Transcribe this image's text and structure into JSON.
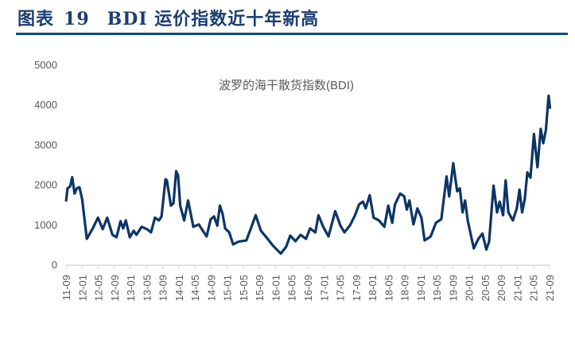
{
  "header": {
    "prefix": "图表",
    "number": "19",
    "text": "BDI 运价指数近十年新高"
  },
  "colors": {
    "line": "#0c3566",
    "title": "#1d3e73",
    "rule": "#0e4a8a",
    "axis": "#d9d9d9",
    "text": "#595959"
  },
  "chart_data": {
    "type": "line",
    "title": "波罗的海干散货指数(BDI)",
    "xlabel": "",
    "ylabel": "",
    "ylim": [
      0,
      5000
    ],
    "yticks": [
      "0",
      "1000",
      "2000",
      "3000",
      "4000",
      "5000"
    ],
    "xticks": [
      "11-09",
      "12-01",
      "12-05",
      "12-09",
      "13-01",
      "13-05",
      "13-09",
      "14-01",
      "14-05",
      "14-09",
      "15-01",
      "15-05",
      "15-09",
      "16-01",
      "16-05",
      "16-09",
      "17-01",
      "17-05",
      "17-09",
      "18-01",
      "18-05",
      "18-09",
      "19-01",
      "19-05",
      "19-09",
      "20-01",
      "20-05",
      "20-09",
      "21-01",
      "21-05",
      "21-09"
    ],
    "xlim": [
      "2011-09-01",
      "2021-09-01"
    ],
    "grid": false,
    "legend": "none",
    "series": [
      {
        "points": [
          [
            "2011-09-02",
            1600
          ],
          [
            "2011-09-12",
            1900
          ],
          [
            "2011-10-02",
            1950
          ],
          [
            "2011-10-17",
            2180
          ],
          [
            "2011-11-05",
            1770
          ],
          [
            "2011-11-21",
            1900
          ],
          [
            "2011-12-11",
            1930
          ],
          [
            "2012-01-01",
            1630
          ],
          [
            "2012-02-06",
            640
          ],
          [
            "2012-03-20",
            900
          ],
          [
            "2012-04-29",
            1170
          ],
          [
            "2012-06-04",
            880
          ],
          [
            "2012-07-08",
            1170
          ],
          [
            "2012-08-17",
            740
          ],
          [
            "2012-09-17",
            680
          ],
          [
            "2012-10-17",
            1080
          ],
          [
            "2012-11-06",
            900
          ],
          [
            "2012-11-26",
            1100
          ],
          [
            "2012-12-26",
            680
          ],
          [
            "2013-01-25",
            840
          ],
          [
            "2013-02-15",
            740
          ],
          [
            "2013-03-24",
            940
          ],
          [
            "2013-05-04",
            880
          ],
          [
            "2013-06-04",
            800
          ],
          [
            "2013-07-03",
            1170
          ],
          [
            "2013-08-03",
            1100
          ],
          [
            "2013-08-22",
            1200
          ],
          [
            "2013-09-22",
            2130
          ],
          [
            "2013-10-02",
            2100
          ],
          [
            "2013-11-02",
            1470
          ],
          [
            "2013-11-21",
            1530
          ],
          [
            "2013-12-11",
            2330
          ],
          [
            "2013-12-25",
            2230
          ],
          [
            "2014-01-11",
            1470
          ],
          [
            "2014-02-11",
            1100
          ],
          [
            "2014-03-10",
            1600
          ],
          [
            "2014-04-19",
            940
          ],
          [
            "2014-05-29",
            1000
          ],
          [
            "2014-07-08",
            800
          ],
          [
            "2014-07-28",
            700
          ],
          [
            "2014-08-28",
            1130
          ],
          [
            "2014-09-23",
            1200
          ],
          [
            "2014-10-17",
            970
          ],
          [
            "2014-11-07",
            1470
          ],
          [
            "2014-11-26",
            1270
          ],
          [
            "2014-12-16",
            900
          ],
          [
            "2015-01-16",
            800
          ],
          [
            "2015-02-15",
            500
          ],
          [
            "2015-03-25",
            570
          ],
          [
            "2015-05-24",
            600
          ],
          [
            "2015-06-24",
            870
          ],
          [
            "2015-08-03",
            1230
          ],
          [
            "2015-09-12",
            840
          ],
          [
            "2015-11-02",
            640
          ],
          [
            "2015-12-11",
            470
          ],
          [
            "2016-02-10",
            270
          ],
          [
            "2016-03-20",
            440
          ],
          [
            "2016-04-20",
            720
          ],
          [
            "2016-05-29",
            580
          ],
          [
            "2016-07-08",
            740
          ],
          [
            "2016-08-18",
            640
          ],
          [
            "2016-09-18",
            900
          ],
          [
            "2016-10-27",
            800
          ],
          [
            "2016-11-21",
            1230
          ],
          [
            "2016-12-26",
            940
          ],
          [
            "2017-02-05",
            700
          ],
          [
            "2017-03-25",
            1330
          ],
          [
            "2017-05-04",
            970
          ],
          [
            "2017-06-04",
            800
          ],
          [
            "2017-07-14",
            970
          ],
          [
            "2017-08-23",
            1230
          ],
          [
            "2017-09-23",
            1500
          ],
          [
            "2017-10-22",
            1570
          ],
          [
            "2017-11-12",
            1400
          ],
          [
            "2017-12-12",
            1730
          ],
          [
            "2018-01-11",
            1170
          ],
          [
            "2018-02-21",
            1100
          ],
          [
            "2018-04-01",
            940
          ],
          [
            "2018-04-30",
            1470
          ],
          [
            "2018-05-30",
            1040
          ],
          [
            "2018-06-20",
            1500
          ],
          [
            "2018-07-29",
            1770
          ],
          [
            "2018-08-29",
            1700
          ],
          [
            "2018-09-18",
            1370
          ],
          [
            "2018-10-08",
            1600
          ],
          [
            "2018-11-08",
            1000
          ],
          [
            "2018-12-07",
            1400
          ],
          [
            "2019-01-07",
            1170
          ],
          [
            "2019-02-01",
            600
          ],
          [
            "2019-03-16",
            700
          ],
          [
            "2019-04-25",
            1040
          ],
          [
            "2019-06-05",
            1130
          ],
          [
            "2019-07-14",
            2200
          ],
          [
            "2019-08-04",
            1700
          ],
          [
            "2019-09-04",
            2530
          ],
          [
            "2019-10-03",
            1830
          ],
          [
            "2019-10-23",
            1900
          ],
          [
            "2019-11-13",
            1300
          ],
          [
            "2019-12-02",
            1600
          ],
          [
            "2019-12-22",
            1100
          ],
          [
            "2020-02-07",
            400
          ],
          [
            "2020-03-11",
            640
          ],
          [
            "2020-04-11",
            770
          ],
          [
            "2020-05-10",
            370
          ],
          [
            "2020-06-01",
            570
          ],
          [
            "2020-07-04",
            1970
          ],
          [
            "2020-07-30",
            1300
          ],
          [
            "2020-08-19",
            1570
          ],
          [
            "2020-09-15",
            1230
          ],
          [
            "2020-10-04",
            2100
          ],
          [
            "2020-10-24",
            1300
          ],
          [
            "2020-11-28",
            1100
          ],
          [
            "2020-12-27",
            1400
          ],
          [
            "2021-01-17",
            1870
          ],
          [
            "2021-02-07",
            1300
          ],
          [
            "2021-02-26",
            1630
          ],
          [
            "2021-03-16",
            2300
          ],
          [
            "2021-04-09",
            2170
          ],
          [
            "2021-05-05",
            3260
          ],
          [
            "2021-06-01",
            2430
          ],
          [
            "2021-06-25",
            3390
          ],
          [
            "2021-07-14",
            3030
          ],
          [
            "2021-08-04",
            3360
          ],
          [
            "2021-08-24",
            4220
          ],
          [
            "2021-09-04",
            3920
          ]
        ]
      }
    ]
  }
}
